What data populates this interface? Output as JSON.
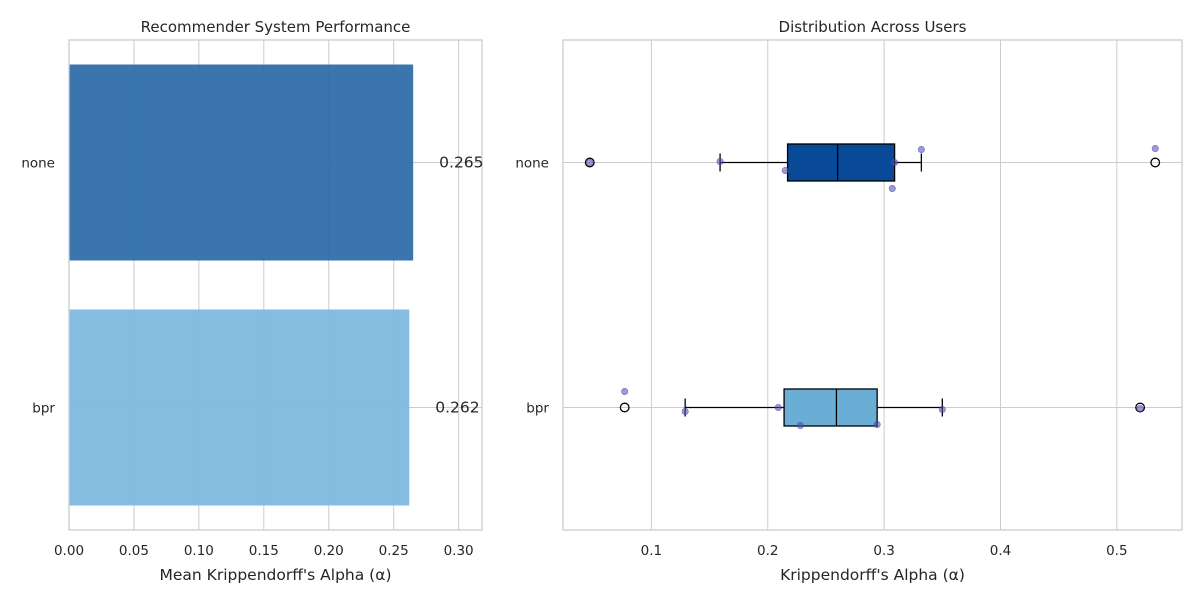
{
  "chart_data": [
    {
      "type": "bar",
      "orientation": "horizontal",
      "title": "Recommender System Performance",
      "xlabel": "Mean Krippendorff's Alpha (α)",
      "ylabel": "",
      "categories": [
        "none",
        "bpr"
      ],
      "values": [
        0.265,
        0.262
      ],
      "value_labels": [
        "0.265",
        "0.262"
      ],
      "colors": [
        "#2b6aa8",
        "#7ab9de"
      ],
      "xlim": [
        0,
        0.318
      ],
      "xticks": [
        "0.00",
        "0.05",
        "0.10",
        "0.15",
        "0.20",
        "0.25",
        "0.30"
      ],
      "grid": true
    },
    {
      "type": "box",
      "orientation": "horizontal",
      "title": "Distribution Across Users",
      "xlabel": "Krippendorff's Alpha (α)",
      "ylabel": "",
      "categories": [
        "none",
        "bpr"
      ],
      "colors": [
        "#084a98",
        "#6aaed6"
      ],
      "boxes": [
        {
          "label": "none",
          "whislo": 0.159,
          "q1": 0.217,
          "med": 0.26,
          "q3": 0.309,
          "whishi": 0.332,
          "fliers": [
            0.047,
            0.533
          ]
        },
        {
          "label": "bpr",
          "whislo": 0.129,
          "q1": 0.214,
          "med": 0.259,
          "q3": 0.294,
          "whishi": 0.35,
          "fliers": [
            0.077,
            0.52
          ]
        }
      ],
      "points": [
        {
          "label": "none",
          "values": [
            0.047,
            0.159,
            0.215,
            0.309,
            0.332,
            0.307,
            0.533
          ]
        },
        {
          "label": "bpr",
          "values": [
            0.077,
            0.129,
            0.209,
            0.228,
            0.294,
            0.35,
            0.52
          ]
        }
      ],
      "xlim": [
        0.024,
        0.556
      ],
      "xticks": [
        "0.1",
        "0.2",
        "0.3",
        "0.4",
        "0.5"
      ],
      "grid": true
    }
  ]
}
